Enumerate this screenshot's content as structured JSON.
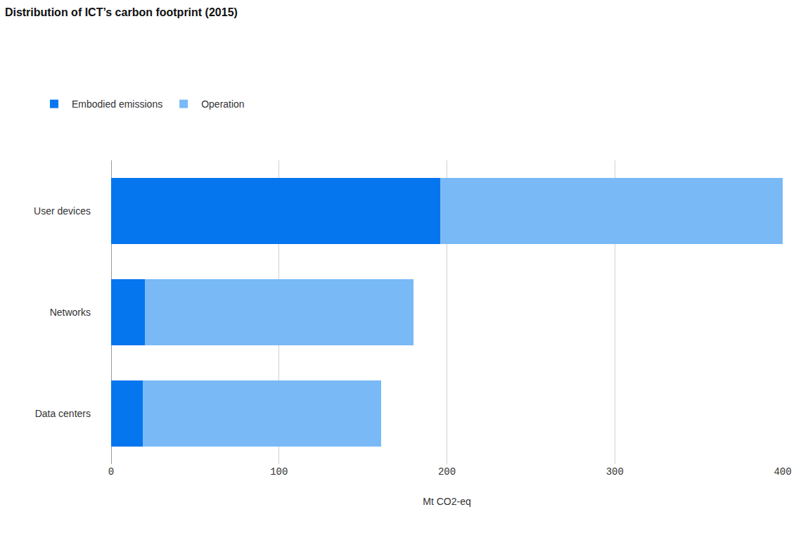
{
  "chart_data": {
    "type": "bar",
    "title": "Distribution of ICT’s carbon footprint (2015)",
    "orientation": "horizontal",
    "stacked": true,
    "categories": [
      "User devices",
      "Networks",
      "Data centers"
    ],
    "series": [
      {
        "name": "Embodied emissions",
        "color": "#0576ee",
        "values": [
          196,
          20,
          19
        ]
      },
      {
        "name": "Operation",
        "color": "#78b9f6",
        "values": [
          204,
          160,
          142
        ]
      }
    ],
    "x_label": "Mt CO2-eq",
    "xlim": [
      0,
      400
    ],
    "xticks": [
      0,
      100,
      200,
      300,
      400
    ],
    "grid": true,
    "legend": "top left"
  }
}
